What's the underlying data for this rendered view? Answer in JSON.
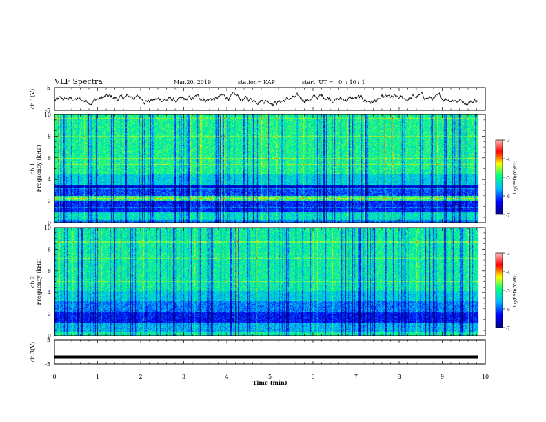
{
  "header": {
    "title": "VLF Spectra",
    "date": "Mar.20, 2019",
    "station": "station= KAP",
    "start": "start  UT =   0  : 10 : 1"
  },
  "chart_data": [
    {
      "type": "line",
      "name": "ch1-waveform",
      "ylabel": "ch.1(V)",
      "xlim": [
        0,
        10
      ],
      "ylim": [
        -5,
        5
      ],
      "yticks": [
        "5",
        "-5"
      ],
      "x_end": 9.83,
      "description_values": "noisy waveform oscillating roughly between -2 and 2 V"
    },
    {
      "type": "heatmap",
      "name": "ch1-spectrogram",
      "ylabel": "ch.1",
      "ylabel2": "Frequency  (kHz)",
      "xlim": [
        0,
        10
      ],
      "ylim": [
        0,
        10
      ],
      "yticks": [
        "0",
        "2",
        "4",
        "6",
        "8",
        "10"
      ],
      "colorbar": {
        "label": "log(PSD)(V²/Hz)",
        "range": [
          -7,
          -3
        ],
        "ticks": [
          "-3",
          "-4",
          "-5",
          "-6",
          "-7"
        ]
      }
    },
    {
      "type": "heatmap",
      "name": "ch2-spectrogram",
      "ylabel": "ch.2",
      "ylabel2": "Frequency  (kHz)",
      "xlim": [
        0,
        10
      ],
      "ylim": [
        0,
        10
      ],
      "yticks": [
        "0",
        "2",
        "4",
        "6",
        "8",
        "10"
      ],
      "colorbar": {
        "label": "log(PSD)(V²/Hz)",
        "range": [
          -7,
          -3
        ],
        "ticks": [
          "-3",
          "-4",
          "-5",
          "-6",
          "-7"
        ]
      }
    },
    {
      "type": "line",
      "name": "ch3-waveform",
      "ylabel": "ch.3(V)",
      "xlim": [
        0,
        10
      ],
      "ylim": [
        -5,
        5
      ],
      "yticks": [
        "5",
        "-5"
      ],
      "constant_value": -2
    }
  ],
  "xaxis": {
    "label": "Time  (min)",
    "ticks": [
      "0",
      "1",
      "2",
      "3",
      "4",
      "5",
      "6",
      "7",
      "8",
      "9",
      "10"
    ]
  },
  "colors": {
    "colormap": [
      "#00007f",
      "#0000ff",
      "#00bfff",
      "#00ff7f",
      "#ffff00",
      "#ff0000",
      "#ff8080"
    ]
  }
}
